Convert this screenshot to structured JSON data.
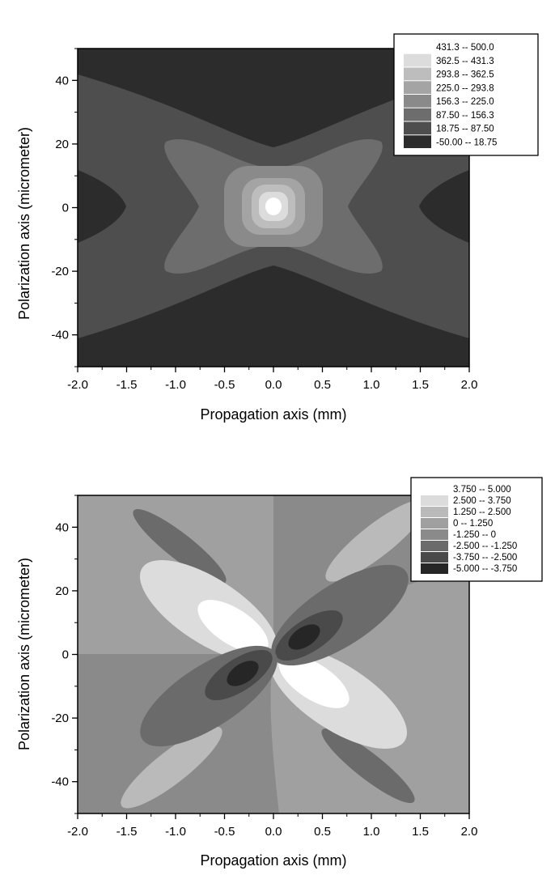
{
  "chart_data": [
    {
      "type": "heatmap",
      "subtype": "filled-contour",
      "xlabel": "Propagation axis (mm)",
      "ylabel": "Polarization axis (micrometer)",
      "xlim": [
        -2.0,
        2.0
      ],
      "ylim": [
        -50,
        50
      ],
      "xticks": [
        "-2.0",
        "-1.5",
        "-1.0",
        "-0.5",
        "0.0",
        "0.5",
        "1.0",
        "1.5",
        "2.0"
      ],
      "yticks": [
        "-40",
        "-20",
        "0",
        "20",
        "40"
      ],
      "legend_position": "top-right",
      "levels": [
        -50.0,
        18.75,
        87.5,
        156.3,
        225.0,
        293.8,
        362.5,
        431.3,
        500.0
      ],
      "legend": [
        {
          "label": "431.3  --  500.0",
          "color": "#ffffff"
        },
        {
          "label": "362.5  --  431.3",
          "color": "#dcdcdc"
        },
        {
          "label": "293.8  --  362.5",
          "color": "#bdbdbd"
        },
        {
          "label": "225.0  --  293.8",
          "color": "#a4a4a4"
        },
        {
          "label": "156.3  --  225.0",
          "color": "#8a8a8a"
        },
        {
          "label": "87.50  --  156.3",
          "color": "#6d6d6d"
        },
        {
          "label": "18.75  --  87.50",
          "color": "#4e4e4e"
        },
        {
          "label": "-50.00  --  18.75",
          "color": "#2c2c2c"
        }
      ]
    },
    {
      "type": "heatmap",
      "subtype": "filled-contour",
      "xlabel": "Propagation axis (mm)",
      "ylabel": "Polarization axis (micrometer)",
      "xlim": [
        -2.0,
        2.0
      ],
      "ylim": [
        -50,
        50
      ],
      "xticks": [
        "-2.0",
        "-1.5",
        "-1.0",
        "-0.5",
        "0.0",
        "0.5",
        "1.0",
        "1.5",
        "2.0"
      ],
      "yticks": [
        "-40",
        "-20",
        "0",
        "20",
        "40"
      ],
      "legend_position": "top-right",
      "levels": [
        -5.0,
        -3.75,
        -2.5,
        -1.25,
        0,
        1.25,
        2.5,
        3.75,
        5.0
      ],
      "legend": [
        {
          "label": "3.750  --  5.000",
          "color": "#ffffff"
        },
        {
          "label": "2.500  --  3.750",
          "color": "#dcdcdc"
        },
        {
          "label": "1.250  --  2.500",
          "color": "#bababa"
        },
        {
          "label": "0  --  1.250",
          "color": "#a0a0a0"
        },
        {
          "label": "-1.250  --  0",
          "color": "#8a8a8a"
        },
        {
          "label": "-2.500  --  -1.250",
          "color": "#6b6b6b"
        },
        {
          "label": "-3.750  --  -2.500",
          "color": "#4a4a4a"
        },
        {
          "label": "-5.000  --  -3.750",
          "color": "#262626"
        }
      ]
    }
  ]
}
